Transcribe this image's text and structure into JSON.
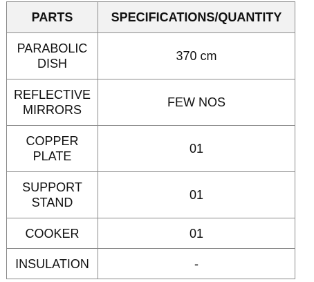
{
  "table": {
    "headers": {
      "parts": "PARTS",
      "spec": "SPECIFICATIONS/QUANTITY"
    },
    "rows": [
      {
        "part_line1": "PARABOLIC",
        "part_line2": "DISH",
        "spec": "370 cm"
      },
      {
        "part_line1": "REFLECTIVE",
        "part_line2": "MIRRORS",
        "spec": "FEW NOS"
      },
      {
        "part_line1": "COPPER",
        "part_line2": "PLATE",
        "spec": "01"
      },
      {
        "part_line1": "SUPPORT",
        "part_line2": "STAND",
        "spec": "01"
      },
      {
        "part_line1": "COOKER",
        "part_line2": "",
        "spec": "01"
      },
      {
        "part_line1": "INSULATION",
        "part_line2": "",
        "spec": "-"
      }
    ]
  }
}
